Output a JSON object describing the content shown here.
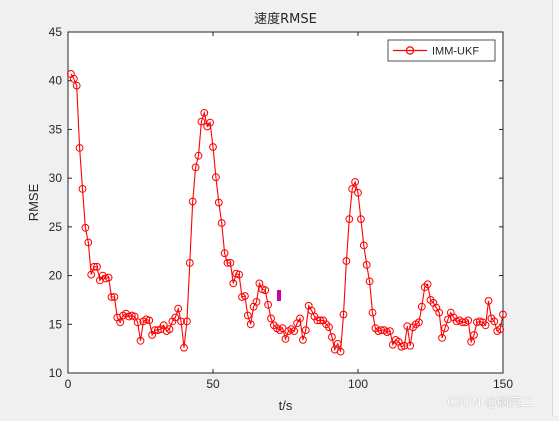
{
  "watermark": "CSDN @脑壳二",
  "colors": {
    "series": "#ff0000",
    "marker_annot": "#cc00aa",
    "axes": "#262626",
    "background": "#f0f0f0",
    "plot_bg": "#ffffff"
  },
  "chart_data": {
    "type": "line",
    "title": "速度RMSE",
    "xlabel": "t/s",
    "ylabel": "RMSE",
    "xlim": [
      0,
      150
    ],
    "ylim": [
      10,
      45
    ],
    "xticks": [
      0,
      50,
      100,
      150
    ],
    "yticks": [
      10,
      15,
      20,
      25,
      30,
      35,
      40,
      45
    ],
    "grid": false,
    "legend_position": "top-right",
    "series": [
      {
        "name": "IMM-UKF",
        "marker": "circle",
        "x": [
          1,
          2,
          3,
          4,
          5,
          6,
          7,
          8,
          9,
          10,
          11,
          12,
          13,
          14,
          15,
          16,
          17,
          18,
          19,
          20,
          21,
          22,
          23,
          24,
          25,
          26,
          27,
          28,
          29,
          30,
          31,
          32,
          33,
          34,
          35,
          36,
          37,
          38,
          39,
          40,
          41,
          42,
          43,
          44,
          45,
          46,
          47,
          48,
          49,
          50,
          51,
          52,
          53,
          54,
          55,
          56,
          57,
          58,
          59,
          60,
          61,
          62,
          63,
          64,
          65,
          66,
          67,
          68,
          69,
          70,
          71,
          72,
          73,
          74,
          75,
          76,
          77,
          78,
          79,
          80,
          81,
          82,
          83,
          84,
          85,
          86,
          87,
          88,
          89,
          90,
          91,
          92,
          93,
          94,
          95,
          96,
          97,
          98,
          99,
          100,
          101,
          102,
          103,
          104,
          105,
          106,
          107,
          108,
          109,
          110,
          111,
          112,
          113,
          114,
          115,
          116,
          117,
          118,
          119,
          120,
          121,
          122,
          123,
          124,
          125,
          126,
          127,
          128,
          129,
          130,
          131,
          132,
          133,
          134,
          135,
          136,
          137,
          138,
          139,
          140,
          141,
          142,
          143,
          144,
          145,
          146,
          147,
          148,
          149,
          150
        ],
        "y": [
          40.7,
          40.2,
          39.5,
          33.1,
          28.9,
          24.9,
          23.4,
          20.1,
          20.9,
          20.9,
          19.5,
          20.0,
          19.7,
          19.8,
          17.8,
          17.8,
          15.7,
          15.2,
          15.9,
          16.1,
          15.8,
          15.9,
          15.8,
          15.2,
          13.3,
          15.3,
          15.5,
          15.4,
          13.9,
          14.4,
          14.4,
          14.5,
          14.9,
          14.3,
          14.5,
          15.3,
          15.7,
          16.6,
          15.3,
          12.6,
          15.3,
          21.3,
          27.6,
          31.1,
          32.3,
          35.8,
          36.7,
          35.3,
          35.7,
          33.2,
          30.1,
          27.5,
          25.4,
          22.3,
          21.3,
          21.3,
          19.2,
          20.2,
          20.1,
          17.8,
          17.9,
          15.9,
          15.0,
          16.8,
          17.3,
          19.2,
          18.6,
          18.5,
          17.0,
          15.6,
          14.9,
          14.6,
          14.4,
          14.6,
          13.5,
          14.3,
          14.5,
          14.3,
          15.1,
          15.6,
          13.4,
          14.4,
          16.9,
          16.4,
          15.8,
          15.4,
          15.4,
          15.4,
          15.0,
          14.7,
          13.7,
          12.4,
          13.0,
          12.2,
          16.0,
          21.5,
          25.8,
          28.9,
          29.6,
          28.5,
          25.8,
          23.1,
          21.1,
          19.4,
          16.2,
          14.6,
          14.3,
          14.4,
          14.4,
          14.2,
          14.3,
          12.9,
          13.4,
          13.2,
          12.7,
          12.8,
          14.8,
          12.8,
          14.7,
          15.0,
          15.2,
          16.8,
          18.8,
          19.1,
          17.5,
          17.2,
          16.7,
          16.2,
          13.6,
          14.6,
          15.5,
          16.2,
          15.7,
          15.3,
          15.4,
          15.2,
          15.2,
          15.4,
          13.2,
          13.9,
          15.2,
          15.3,
          15.2,
          14.9,
          17.4,
          15.6,
          15.3,
          14.3,
          14.5,
          16.0
        ]
      }
    ]
  }
}
